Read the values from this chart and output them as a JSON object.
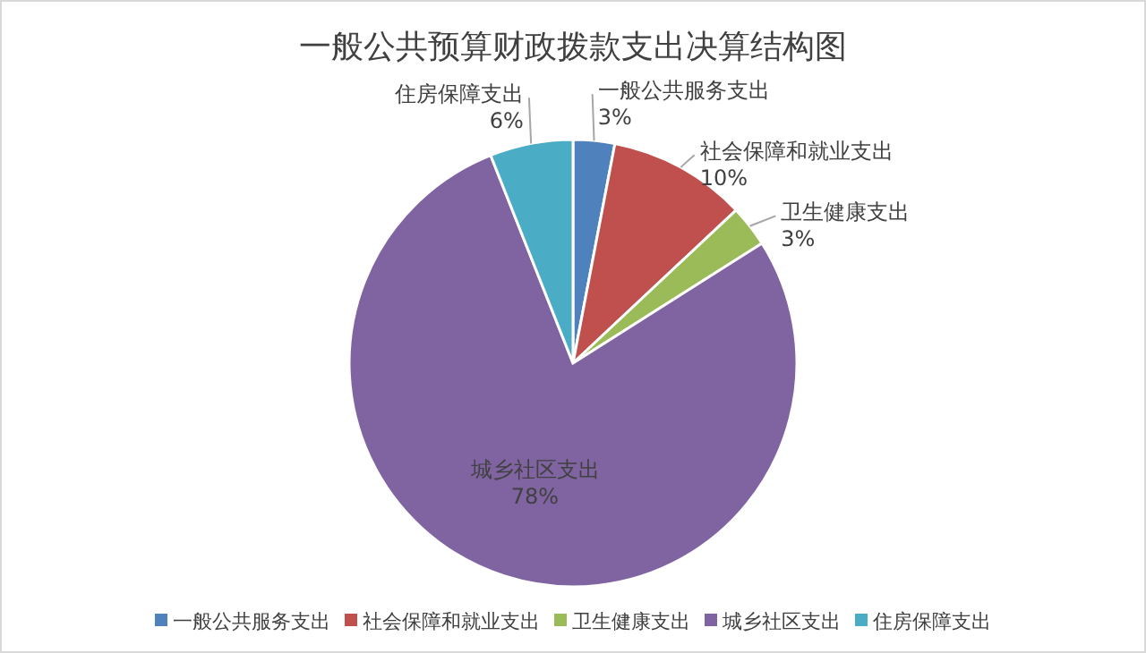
{
  "chart_data": {
    "type": "pie",
    "title": "一般公共预算财政拨款支出决算结构图",
    "categories": [
      "一般公共服务支出",
      "社会保障和就业支出",
      "卫生健康支出",
      "城乡社区支出",
      "住房保障支出"
    ],
    "values": [
      3,
      10,
      3,
      78,
      6
    ],
    "colors": [
      "#4f81bd",
      "#c0504d",
      "#9bbb59",
      "#8064a2",
      "#4bacc6"
    ],
    "value_labels": [
      "3%",
      "10%",
      "3%",
      "78%",
      "6%"
    ],
    "legend": "bottom"
  }
}
